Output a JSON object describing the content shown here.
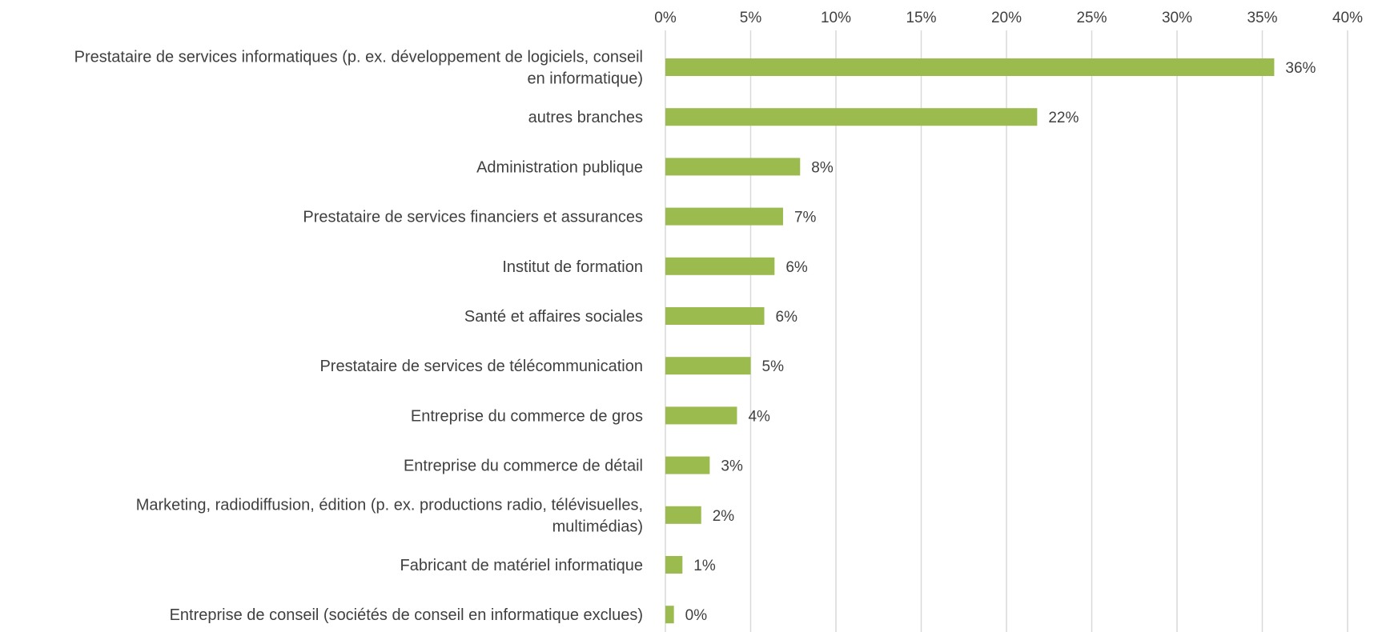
{
  "chart_data": {
    "type": "bar",
    "orientation": "horizontal",
    "categories": [
      "Prestataire de services informatiques (p. ex. développement de logiciels, conseil en informatique)",
      "autres branches",
      "Administration publique",
      "Prestataire de services financiers et assurances",
      "Institut de formation",
      "Santé et affaires sociales",
      "Prestataire de services de télécommunication",
      "Entreprise du commerce de gros",
      "Entreprise du commerce de détail",
      "Marketing, radiodiffusion, édition (p. ex. productions radio, télévisuelles, multimédias)",
      "Fabricant de matériel informatique",
      "Entreprise de conseil (sociétés de conseil en informatique exclues)"
    ],
    "category_lines": [
      [
        "Prestataire de services informatiques (p. ex. développement de logiciels, conseil",
        "en informatique)"
      ],
      [
        "autres branches"
      ],
      [
        "Administration publique"
      ],
      [
        "Prestataire de services financiers et assurances"
      ],
      [
        "Institut de formation"
      ],
      [
        "Santé et affaires sociales"
      ],
      [
        "Prestataire de services de télécommunication"
      ],
      [
        "Entreprise du commerce de gros"
      ],
      [
        "Entreprise du commerce de détail"
      ],
      [
        "Marketing, radiodiffusion, édition (p. ex. productions radio, télévisuelles,",
        "multimédias)"
      ],
      [
        "Fabricant de matériel informatique"
      ],
      [
        "Entreprise de conseil (sociétés de conseil en informatique exclues)"
      ]
    ],
    "values": [
      35.7,
      21.8,
      7.9,
      6.9,
      6.4,
      5.8,
      5.0,
      4.2,
      2.6,
      2.1,
      1.0,
      0.5
    ],
    "data_labels": [
      "36%",
      "22%",
      "8%",
      "7%",
      "6%",
      "6%",
      "5%",
      "4%",
      "3%",
      "2%",
      "1%",
      "0%"
    ],
    "xlim": [
      0,
      40
    ],
    "x_ticks": [
      0,
      5,
      10,
      15,
      20,
      25,
      30,
      35,
      40
    ],
    "x_tick_labels": [
      "0%",
      "5%",
      "10%",
      "15%",
      "20%",
      "25%",
      "30%",
      "35%",
      "40%"
    ],
    "x_axis_position": "top",
    "grid": true,
    "colors": {
      "bar": "#9BBB4F",
      "grid": "#D9D9D9",
      "text": "#404040"
    },
    "title": "",
    "xlabel": "",
    "ylabel": ""
  }
}
